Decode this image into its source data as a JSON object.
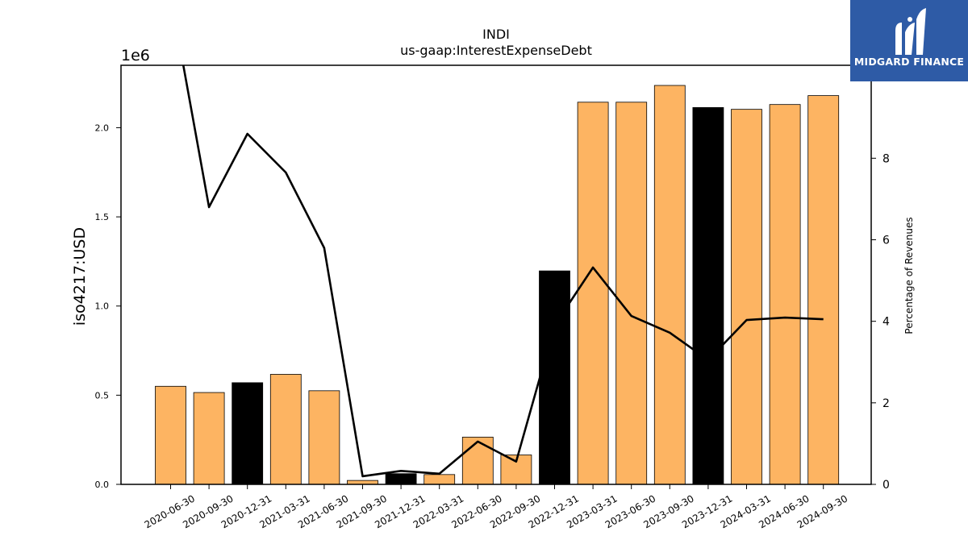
{
  "chart_data": {
    "type": "bar",
    "title": "INDI",
    "subtitle": "us-gaap:InterestExpenseDebt",
    "ylabel": "iso4217:USD",
    "y_offset_label": "1e6",
    "y2label": "Percentage of Revenues",
    "ylim": [
      0,
      2350000
    ],
    "y2lim": [
      0,
      10.28
    ],
    "yticks": [
      "0.0",
      "0.5",
      "1.0",
      "1.5",
      "2.0"
    ],
    "y2ticks": [
      "0",
      "2",
      "4",
      "6",
      "8"
    ],
    "grid": false,
    "categories": [
      "2020-06-30",
      "2020-09-30",
      "2020-12-31",
      "2021-03-31",
      "2021-06-30",
      "2021-09-30",
      "2021-12-31",
      "2022-03-31",
      "2022-06-30",
      "2022-09-30",
      "2022-12-31",
      "2023-03-31",
      "2023-06-30",
      "2023-09-30",
      "2023-12-31",
      "2024-03-31",
      "2024-06-30",
      "2024-09-30"
    ],
    "series": [
      {
        "kind": "bar",
        "values": [
          550000,
          515000,
          570000,
          617000,
          525000,
          22000,
          60000,
          55000,
          265000,
          165000,
          1197000,
          2143000,
          2143000,
          2237000,
          2113000,
          2103000,
          2130000,
          2180000
        ],
        "colors": [
          "#fdb462",
          "#fdb462",
          "#000000",
          "#fdb462",
          "#fdb462",
          "#fdb462",
          "#000000",
          "#fdb462",
          "#fdb462",
          "#fdb462",
          "#000000",
          "#fdb462",
          "#fdb462",
          "#fdb462",
          "#000000",
          "#fdb462",
          "#fdb462",
          "#fdb462"
        ]
      },
      {
        "kind": "line",
        "axis": "right",
        "color": "#000000",
        "values": [
          12.0,
          6.8,
          8.6,
          7.65,
          5.8,
          0.2,
          0.33,
          0.26,
          1.05,
          0.56,
          3.9,
          5.32,
          4.13,
          3.72,
          3.05,
          4.03,
          4.09,
          4.05
        ]
      }
    ]
  },
  "logo": {
    "text": "MIDGARD FINANCE",
    "icon": "midgard-m-icon"
  }
}
